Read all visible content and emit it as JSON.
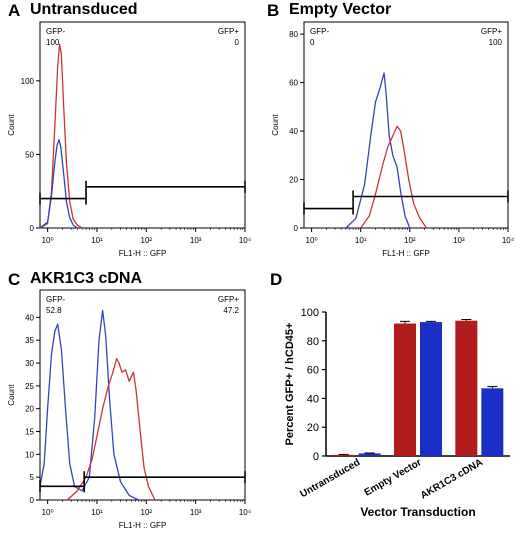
{
  "chart_data": [
    {
      "panel": "A",
      "type": "line",
      "title": "Untransduced",
      "xlabel": "FL1-H :: GFP",
      "ylabel": "Count",
      "x_scale": "log",
      "xlim": [
        0.7,
        10000
      ],
      "ylim": [
        0,
        140
      ],
      "x_tick_labels": [
        "10⁰",
        "10¹",
        "10²",
        "10³",
        "10⁴"
      ],
      "y_ticks": [
        0,
        50,
        100
      ],
      "gates": [
        {
          "label": "GFP-",
          "value": "100",
          "x_range": [
            0.7,
            6
          ],
          "y": 20
        },
        {
          "label": "GFP+",
          "value": "0",
          "x_range": [
            6,
            10000
          ],
          "y": 28
        }
      ],
      "series": [
        {
          "color": "#cc3333",
          "points": [
            [
              0.7,
              0
            ],
            [
              1.0,
              3
            ],
            [
              1.2,
              25
            ],
            [
              1.4,
              70
            ],
            [
              1.6,
              110
            ],
            [
              1.75,
              125
            ],
            [
              1.9,
              118
            ],
            [
              2.1,
              85
            ],
            [
              2.4,
              45
            ],
            [
              2.8,
              18
            ],
            [
              3.3,
              6
            ],
            [
              4.0,
              2
            ],
            [
              5.0,
              0
            ]
          ]
        },
        {
          "color": "#3344bb",
          "points": [
            [
              0.7,
              0
            ],
            [
              1.0,
              4
            ],
            [
              1.2,
              22
            ],
            [
              1.4,
              45
            ],
            [
              1.55,
              56
            ],
            [
              1.7,
              60
            ],
            [
              1.85,
              55
            ],
            [
              2.1,
              38
            ],
            [
              2.4,
              18
            ],
            [
              2.8,
              7
            ],
            [
              3.3,
              2
            ],
            [
              4.0,
              0
            ]
          ]
        }
      ]
    },
    {
      "panel": "B",
      "type": "line",
      "title": "Empty Vector",
      "xlabel": "FL1-H :: GFP",
      "ylabel": "Count",
      "x_scale": "log",
      "xlim": [
        0.7,
        10000
      ],
      "ylim": [
        0,
        85
      ],
      "x_tick_labels": [
        "10⁰",
        "10¹",
        "10²",
        "10³",
        "10⁴"
      ],
      "y_ticks": [
        0,
        20,
        40,
        60,
        80
      ],
      "gates": [
        {
          "label": "GFP-",
          "value": "0",
          "x_range": [
            0.7,
            7
          ],
          "y": 8
        },
        {
          "label": "GFP+",
          "value": "100",
          "x_range": [
            7,
            10000
          ],
          "y": 13
        }
      ],
      "series": [
        {
          "color": "#3344bb",
          "points": [
            [
              5,
              0
            ],
            [
              8,
              4
            ],
            [
              12,
              18
            ],
            [
              16,
              38
            ],
            [
              20,
              52
            ],
            [
              25,
              58
            ],
            [
              30,
              64
            ],
            [
              33,
              55
            ],
            [
              38,
              38
            ],
            [
              45,
              30
            ],
            [
              55,
              25
            ],
            [
              65,
              15
            ],
            [
              80,
              5
            ],
            [
              100,
              0
            ]
          ]
        },
        {
          "color": "#cc3333",
          "points": [
            [
              10,
              0
            ],
            [
              15,
              5
            ],
            [
              20,
              14
            ],
            [
              28,
              26
            ],
            [
              35,
              33
            ],
            [
              45,
              38
            ],
            [
              55,
              42
            ],
            [
              65,
              40
            ],
            [
              75,
              33
            ],
            [
              95,
              20
            ],
            [
              120,
              10
            ],
            [
              160,
              4
            ],
            [
              220,
              0
            ]
          ]
        }
      ]
    },
    {
      "panel": "C",
      "type": "line",
      "title": "AKR1C3 cDNA",
      "xlabel": "FL1-H :: GFP",
      "ylabel": "Count",
      "x_scale": "log",
      "xlim": [
        0.7,
        10000
      ],
      "ylim": [
        0,
        46
      ],
      "x_tick_labels": [
        "10⁰",
        "10¹",
        "10²",
        "10³",
        "10⁴"
      ],
      "y_ticks": [
        0,
        5,
        10,
        15,
        20,
        25,
        30,
        35,
        40
      ],
      "gates": [
        {
          "label": "GFP-",
          "value": "52.8",
          "x_range": [
            0.7,
            5.5
          ],
          "y": 3
        },
        {
          "label": "GFP+",
          "value": "47.2",
          "x_range": [
            5.5,
            10000
          ],
          "y": 5
        }
      ],
      "series": [
        {
          "color": "#3344bb",
          "points": [
            [
              0.7,
              3
            ],
            [
              0.85,
              8
            ],
            [
              1.0,
              20
            ],
            [
              1.2,
              32
            ],
            [
              1.4,
              37
            ],
            [
              1.6,
              38.5
            ],
            [
              1.9,
              33
            ],
            [
              2.3,
              20
            ],
            [
              2.8,
              8
            ],
            [
              3.5,
              3
            ],
            [
              5,
              2
            ],
            [
              7,
              5
            ],
            [
              9,
              18
            ],
            [
              11,
              35
            ],
            [
              13,
              41.5
            ],
            [
              15,
              36
            ],
            [
              18,
              22
            ],
            [
              22,
              10
            ],
            [
              30,
              4
            ],
            [
              45,
              1
            ],
            [
              70,
              0
            ]
          ]
        },
        {
          "color": "#cc3333",
          "points": [
            [
              2.5,
              0
            ],
            [
              4,
              2
            ],
            [
              6,
              5
            ],
            [
              8,
              9
            ],
            [
              10,
              14
            ],
            [
              13,
              20
            ],
            [
              17,
              25
            ],
            [
              21,
              28
            ],
            [
              25,
              31
            ],
            [
              28,
              30
            ],
            [
              32,
              28
            ],
            [
              38,
              28.5
            ],
            [
              45,
              26
            ],
            [
              55,
              28
            ],
            [
              62,
              24
            ],
            [
              75,
              15
            ],
            [
              90,
              7
            ],
            [
              110,
              3
            ],
            [
              150,
              0
            ]
          ]
        }
      ]
    },
    {
      "panel": "D",
      "type": "bar",
      "xlabel": "Vector Transduction",
      "ylabel": "Percent GFP+ / hCD45+",
      "ylim": [
        0,
        100
      ],
      "y_ticks": [
        0,
        20,
        40,
        60,
        80,
        100
      ],
      "categories": [
        "Untransduced",
        "Empty Vector",
        "AKR1C3 cDNA"
      ],
      "series": [
        {
          "color": "#b01c1c",
          "values": [
            0.8,
            92,
            94
          ],
          "errors": [
            0.3,
            1.5,
            0.8
          ]
        },
        {
          "color": "#1a2fc4",
          "values": [
            1.8,
            93,
            47
          ],
          "errors": [
            0.3,
            0.5,
            1.2
          ]
        }
      ]
    }
  ]
}
